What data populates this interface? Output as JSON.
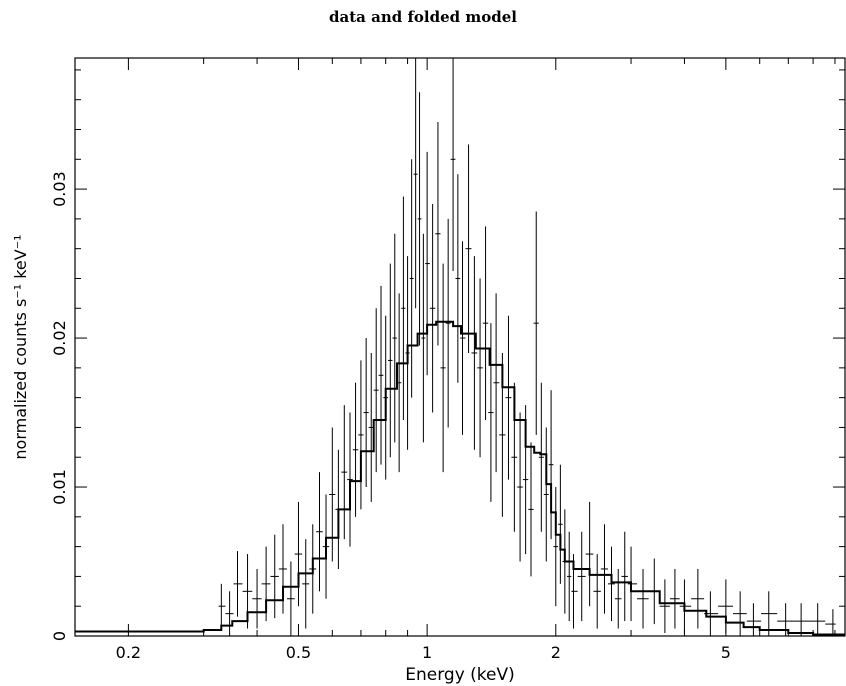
{
  "chart_data": {
    "type": "line",
    "title": "data and folded model",
    "xlabel": "Energy (keV)",
    "ylabel": "normalized counts s⁻¹ keV⁻¹",
    "x_scale": "log",
    "xlim": [
      0.15,
      9.5
    ],
    "ylim": [
      0,
      0.0388
    ],
    "x_ticks": [
      {
        "value": 0.2,
        "label": "0.2"
      },
      {
        "value": 0.5,
        "label": "0.5"
      },
      {
        "value": 1,
        "label": "1"
      },
      {
        "value": 2,
        "label": "2"
      },
      {
        "value": 5,
        "label": "5"
      }
    ],
    "y_ticks": [
      {
        "value": 0,
        "label": "0"
      },
      {
        "value": 0.01,
        "label": "0.01"
      },
      {
        "value": 0.02,
        "label": "0.02"
      },
      {
        "value": 0.03,
        "label": "0.03"
      }
    ],
    "series": [
      {
        "kind": "model-step",
        "color": "#000000",
        "points": [
          [
            0.15,
            0.0003
          ],
          [
            0.25,
            0.0003
          ],
          [
            0.3,
            0.0004
          ],
          [
            0.33,
            0.0007
          ],
          [
            0.35,
            0.001
          ],
          [
            0.38,
            0.0016
          ],
          [
            0.42,
            0.0024
          ],
          [
            0.46,
            0.0033
          ],
          [
            0.5,
            0.0042
          ],
          [
            0.54,
            0.0052
          ],
          [
            0.58,
            0.0066
          ],
          [
            0.62,
            0.0085
          ],
          [
            0.66,
            0.0104
          ],
          [
            0.7,
            0.0124
          ],
          [
            0.75,
            0.0145
          ],
          [
            0.8,
            0.0166
          ],
          [
            0.85,
            0.0183
          ],
          [
            0.9,
            0.0195
          ],
          [
            0.95,
            0.0203
          ],
          [
            1.0,
            0.0209
          ],
          [
            1.05,
            0.0211
          ],
          [
            1.1,
            0.0211
          ],
          [
            1.15,
            0.0208
          ],
          [
            1.2,
            0.0203
          ],
          [
            1.3,
            0.0193
          ],
          [
            1.4,
            0.0182
          ],
          [
            1.5,
            0.0167
          ],
          [
            1.6,
            0.0145
          ],
          [
            1.7,
            0.0127
          ],
          [
            1.78,
            0.0123
          ],
          [
            1.84,
            0.0122
          ],
          [
            1.9,
            0.0102
          ],
          [
            1.95,
            0.0083
          ],
          [
            2.0,
            0.0068
          ],
          [
            2.05,
            0.0058
          ],
          [
            2.1,
            0.005
          ],
          [
            2.2,
            0.0045
          ],
          [
            2.4,
            0.0041
          ],
          [
            2.7,
            0.0036
          ],
          [
            3.0,
            0.003
          ],
          [
            3.5,
            0.0022
          ],
          [
            4.0,
            0.0017
          ],
          [
            4.5,
            0.0013
          ],
          [
            5.0,
            0.0009
          ],
          [
            5.5,
            0.0006
          ],
          [
            6.0,
            0.0004
          ],
          [
            7.0,
            0.0002
          ],
          [
            8.0,
            0.0001
          ],
          [
            9.5,
            0.0001
          ]
        ]
      },
      {
        "kind": "data-with-errors",
        "color": "#000000",
        "points": [
          [
            0.33,
            0.002,
            0.0015
          ],
          [
            0.345,
            0.0015,
            0.0015
          ],
          [
            0.36,
            0.0035,
            0.0022
          ],
          [
            0.38,
            0.003,
            0.0025
          ],
          [
            0.4,
            0.0025,
            0.002
          ],
          [
            0.42,
            0.0035,
            0.0025
          ],
          [
            0.44,
            0.004,
            0.0028
          ],
          [
            0.46,
            0.0045,
            0.003
          ],
          [
            0.48,
            0.0025,
            0.0025
          ],
          [
            0.5,
            0.0055,
            0.0035
          ],
          [
            0.52,
            0.0035,
            0.003
          ],
          [
            0.54,
            0.0045,
            0.003
          ],
          [
            0.56,
            0.007,
            0.004
          ],
          [
            0.58,
            0.006,
            0.0035
          ],
          [
            0.6,
            0.0095,
            0.0045
          ],
          [
            0.62,
            0.0085,
            0.004
          ],
          [
            0.64,
            0.011,
            0.0045
          ],
          [
            0.66,
            0.0105,
            0.0045
          ],
          [
            0.68,
            0.0125,
            0.0045
          ],
          [
            0.7,
            0.0135,
            0.005
          ],
          [
            0.72,
            0.015,
            0.005
          ],
          [
            0.74,
            0.014,
            0.005
          ],
          [
            0.76,
            0.0165,
            0.0055
          ],
          [
            0.78,
            0.0175,
            0.006
          ],
          [
            0.8,
            0.016,
            0.0055
          ],
          [
            0.82,
            0.0185,
            0.0065
          ],
          [
            0.84,
            0.02,
            0.007
          ],
          [
            0.86,
            0.017,
            0.006
          ],
          [
            0.88,
            0.022,
            0.0075
          ],
          [
            0.9,
            0.019,
            0.0065
          ],
          [
            0.92,
            0.024,
            0.008
          ],
          [
            0.94,
            0.031,
            0.009
          ],
          [
            0.96,
            0.028,
            0.0085
          ],
          [
            0.98,
            0.02,
            0.007
          ],
          [
            1.0,
            0.025,
            0.0075
          ],
          [
            1.03,
            0.022,
            0.007
          ],
          [
            1.06,
            0.027,
            0.0075
          ],
          [
            1.09,
            0.018,
            0.007
          ],
          [
            1.12,
            0.021,
            0.007
          ],
          [
            1.15,
            0.032,
            0.0075
          ],
          [
            1.18,
            0.024,
            0.007
          ],
          [
            1.21,
            0.02,
            0.0065
          ],
          [
            1.25,
            0.026,
            0.007
          ],
          [
            1.29,
            0.019,
            0.0065
          ],
          [
            1.33,
            0.018,
            0.006
          ],
          [
            1.37,
            0.021,
            0.0065
          ],
          [
            1.41,
            0.015,
            0.006
          ],
          [
            1.45,
            0.017,
            0.006
          ],
          [
            1.5,
            0.0135,
            0.0055
          ],
          [
            1.55,
            0.016,
            0.0055
          ],
          [
            1.6,
            0.012,
            0.005
          ],
          [
            1.65,
            0.01,
            0.005
          ],
          [
            1.7,
            0.0105,
            0.005
          ],
          [
            1.75,
            0.0085,
            0.0045
          ],
          [
            1.8,
            0.021,
            0.0075
          ],
          [
            1.85,
            0.012,
            0.005
          ],
          [
            1.9,
            0.0095,
            0.0045
          ],
          [
            1.95,
            0.0115,
            0.005
          ],
          [
            2.0,
            0.006,
            0.004
          ],
          [
            2.05,
            0.0075,
            0.004
          ],
          [
            2.1,
            0.005,
            0.0035
          ],
          [
            2.15,
            0.004,
            0.003
          ],
          [
            2.2,
            0.003,
            0.0025
          ],
          [
            2.3,
            0.004,
            0.003
          ],
          [
            2.4,
            0.0055,
            0.0035
          ],
          [
            2.5,
            0.003,
            0.0025
          ],
          [
            2.6,
            0.0045,
            0.003
          ],
          [
            2.7,
            0.0035,
            0.0025
          ],
          [
            2.8,
            0.0025,
            0.002
          ],
          [
            2.9,
            0.004,
            0.003
          ],
          [
            3.0,
            0.0035,
            0.0025
          ],
          [
            3.2,
            0.0025,
            0.002
          ],
          [
            3.4,
            0.003,
            0.0022
          ],
          [
            3.6,
            0.002,
            0.0018
          ],
          [
            3.8,
            0.0025,
            0.002
          ],
          [
            4.0,
            0.002,
            0.0018
          ],
          [
            4.3,
            0.0025,
            0.002
          ],
          [
            4.6,
            0.0015,
            0.0015
          ],
          [
            5.0,
            0.002,
            0.0018
          ],
          [
            5.4,
            0.0015,
            0.0015
          ],
          [
            5.8,
            0.001,
            0.0012
          ],
          [
            6.3,
            0.0015,
            0.0015
          ],
          [
            6.9,
            0.001,
            0.0012
          ],
          [
            7.5,
            0.001,
            0.0012
          ],
          [
            8.2,
            0.001,
            0.0012
          ],
          [
            8.9,
            0.0008,
            0.001
          ]
        ]
      }
    ]
  }
}
